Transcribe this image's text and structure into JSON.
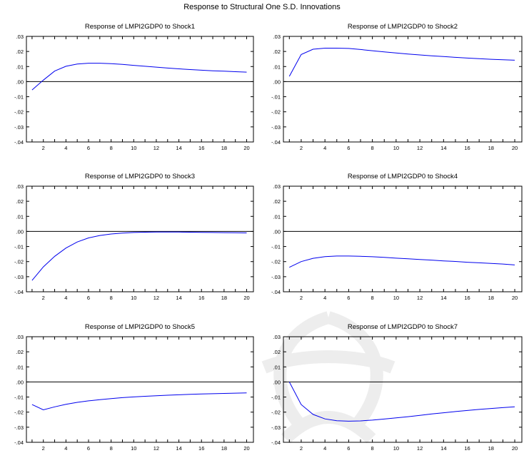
{
  "figure": {
    "title": "Response to Structural One S.D. Innovations",
    "line_color": "#0000ee",
    "zero_line_color": "#000000"
  },
  "chart_data": [
    {
      "type": "line",
      "title": "Response of LMPI2GDP0 to Shock1",
      "x": [
        1,
        2,
        3,
        4,
        5,
        6,
        7,
        8,
        9,
        10,
        11,
        12,
        13,
        14,
        15,
        16,
        17,
        18,
        19,
        20
      ],
      "x_ticks": [
        2,
        4,
        6,
        8,
        10,
        12,
        14,
        16,
        18,
        20
      ],
      "ylim": [
        -0.04,
        0.03
      ],
      "y_ticks": [
        ".03",
        ".02",
        ".01",
        ".00",
        "-.01",
        "-.02",
        "-.03",
        "-.04"
      ],
      "series": [
        {
          "values": [
            -0.0055,
            0.001,
            0.007,
            0.0102,
            0.0117,
            0.0122,
            0.0122,
            0.0119,
            0.0114,
            0.0108,
            0.0102,
            0.0096,
            0.009,
            0.0085,
            0.008,
            0.0076,
            0.0072,
            0.0069,
            0.0066,
            0.0063
          ]
        }
      ]
    },
    {
      "type": "line",
      "title": "Response of LMPI2GDP0 to Shock2",
      "x": [
        1,
        2,
        3,
        4,
        5,
        6,
        7,
        8,
        9,
        10,
        11,
        12,
        13,
        14,
        15,
        16,
        17,
        18,
        19,
        20
      ],
      "x_ticks": [
        2,
        4,
        6,
        8,
        10,
        12,
        14,
        16,
        18,
        20
      ],
      "ylim": [
        -0.04,
        0.03
      ],
      "y_ticks": [
        ".03",
        ".02",
        ".01",
        ".00",
        "-.01",
        "-.02",
        "-.03",
        "-.04"
      ],
      "series": [
        {
          "values": [
            0.0035,
            0.018,
            0.0215,
            0.0222,
            0.0222,
            0.022,
            0.0213,
            0.0205,
            0.0197,
            0.019,
            0.0183,
            0.0177,
            0.0171,
            0.0166,
            0.0161,
            0.0156,
            0.0152,
            0.0148,
            0.0145,
            0.0142
          ]
        }
      ]
    },
    {
      "type": "line",
      "title": "Response of LMPI2GDP0 to Shock3",
      "x": [
        1,
        2,
        3,
        4,
        5,
        6,
        7,
        8,
        9,
        10,
        11,
        12,
        13,
        14,
        15,
        16,
        17,
        18,
        19,
        20
      ],
      "x_ticks": [
        2,
        4,
        6,
        8,
        10,
        12,
        14,
        16,
        18,
        20
      ],
      "ylim": [
        -0.04,
        0.03
      ],
      "y_ticks": [
        ".03",
        ".02",
        ".01",
        ".00",
        "-.01",
        "-.02",
        "-.03",
        "-.04"
      ],
      "series": [
        {
          "values": [
            -0.0325,
            -0.0235,
            -0.0165,
            -0.011,
            -0.007,
            -0.0043,
            -0.0027,
            -0.0017,
            -0.0011,
            -0.0007,
            -0.0005,
            -0.0004,
            -0.0004,
            -0.0004,
            -0.0005,
            -0.0006,
            -0.0007,
            -0.0008,
            -0.0009,
            -0.001
          ]
        }
      ]
    },
    {
      "type": "line",
      "title": "Response of LMPI2GDP0 to Shock4",
      "x": [
        1,
        2,
        3,
        4,
        5,
        6,
        7,
        8,
        9,
        10,
        11,
        12,
        13,
        14,
        15,
        16,
        17,
        18,
        19,
        20
      ],
      "x_ticks": [
        2,
        4,
        6,
        8,
        10,
        12,
        14,
        16,
        18,
        20
      ],
      "ylim": [
        -0.04,
        0.03
      ],
      "y_ticks": [
        ".03",
        ".02",
        ".01",
        ".00",
        "-.01",
        "-.02",
        "-.03",
        "-.04"
      ],
      "series": [
        {
          "values": [
            -0.0238,
            -0.02,
            -0.0178,
            -0.0167,
            -0.0163,
            -0.0163,
            -0.0165,
            -0.0168,
            -0.0172,
            -0.0177,
            -0.0181,
            -0.0186,
            -0.019,
            -0.0195,
            -0.0199,
            -0.0204,
            -0.0208,
            -0.0212,
            -0.0216,
            -0.0222
          ]
        }
      ]
    },
    {
      "type": "line",
      "title": "Response of LMPI2GDP0 to Shock5",
      "x": [
        1,
        2,
        3,
        4,
        5,
        6,
        7,
        8,
        9,
        10,
        11,
        12,
        13,
        14,
        15,
        16,
        17,
        18,
        19,
        20
      ],
      "x_ticks": [
        2,
        4,
        6,
        8,
        10,
        12,
        14,
        16,
        18,
        20
      ],
      "ylim": [
        -0.04,
        0.03
      ],
      "y_ticks": [
        ".03",
        ".02",
        ".01",
        ".00",
        "-.01",
        "-.02",
        "-.03",
        "-.04"
      ],
      "series": [
        {
          "values": [
            -0.015,
            -0.0185,
            -0.0165,
            -0.0148,
            -0.0135,
            -0.0125,
            -0.0117,
            -0.011,
            -0.0104,
            -0.0099,
            -0.0095,
            -0.0091,
            -0.0088,
            -0.0085,
            -0.0082,
            -0.008,
            -0.0078,
            -0.0076,
            -0.0074,
            -0.0072
          ]
        }
      ]
    },
    {
      "type": "line",
      "title": "Response of LMPI2GDP0 to Shock7",
      "x": [
        1,
        2,
        3,
        4,
        5,
        6,
        7,
        8,
        9,
        10,
        11,
        12,
        13,
        14,
        15,
        16,
        17,
        18,
        19,
        20
      ],
      "x_ticks": [
        2,
        4,
        6,
        8,
        10,
        12,
        14,
        16,
        18,
        20
      ],
      "ylim": [
        -0.04,
        0.03
      ],
      "y_ticks": [
        ".03",
        ".02",
        ".01",
        ".00",
        "-.01",
        "-.02",
        "-.03",
        "-.04"
      ],
      "series": [
        {
          "values": [
            0.0,
            -0.015,
            -0.0215,
            -0.0245,
            -0.0257,
            -0.026,
            -0.0258,
            -0.0253,
            -0.0246,
            -0.0238,
            -0.023,
            -0.0221,
            -0.0212,
            -0.0204,
            -0.0196,
            -0.0189,
            -0.0182,
            -0.0176,
            -0.017,
            -0.0165
          ]
        }
      ]
    }
  ]
}
